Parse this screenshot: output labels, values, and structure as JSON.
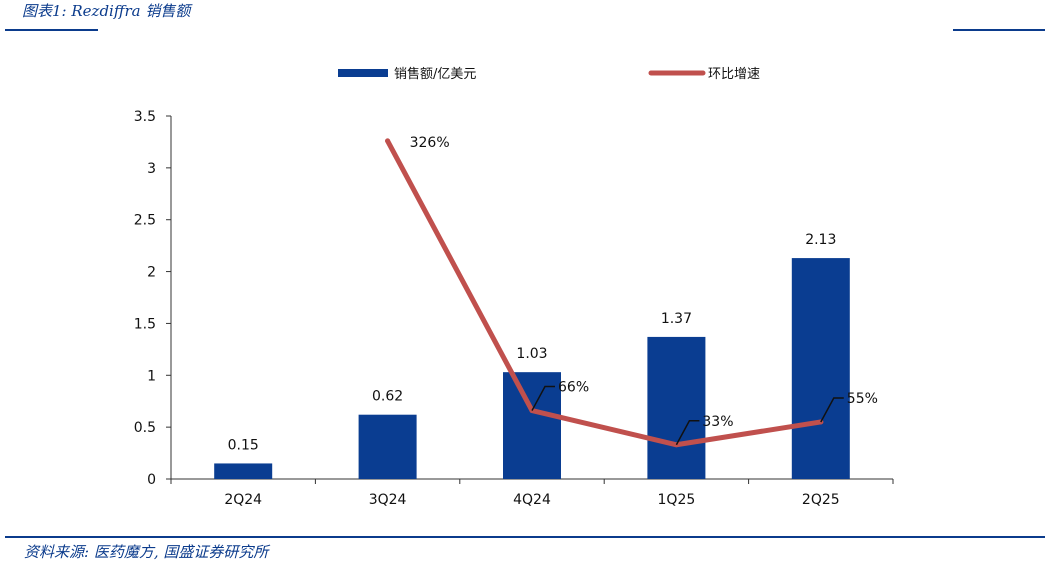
{
  "figure": {
    "title": "图表1: Rezdiffra 销售额",
    "source": "资料来源: 医药魔方, 国盛证券研究所"
  },
  "colors": {
    "brand": "#0b3b8c",
    "bar": "#0a3d91",
    "line": "#c0504d",
    "axis": "#333333"
  },
  "chart_data": {
    "type": "bar",
    "categories": [
      "2Q24",
      "3Q24",
      "4Q24",
      "1Q25",
      "2Q25"
    ],
    "series": [
      {
        "name": "销售额/亿美元",
        "type": "bar",
        "values": [
          0.15,
          0.62,
          1.03,
          1.37,
          2.13
        ],
        "labels": [
          "0.15",
          "0.62",
          "1.03",
          "1.37",
          "2.13"
        ]
      },
      {
        "name": "环比增速",
        "type": "line",
        "values": [
          null,
          3.26,
          0.66,
          0.33,
          0.55
        ],
        "labels": [
          null,
          "326%",
          "66%",
          "33%",
          "55%"
        ]
      }
    ],
    "ylim": [
      0,
      3.5
    ],
    "yticks": [
      "0",
      "0.5",
      "1",
      "1.5",
      "2",
      "2.5",
      "3",
      "3.5"
    ],
    "ytick_values": [
      0,
      0.5,
      1,
      1.5,
      2,
      2.5,
      3,
      3.5
    ],
    "xlabel": "",
    "ylabel": "",
    "legend_position": "top",
    "grid": false
  }
}
